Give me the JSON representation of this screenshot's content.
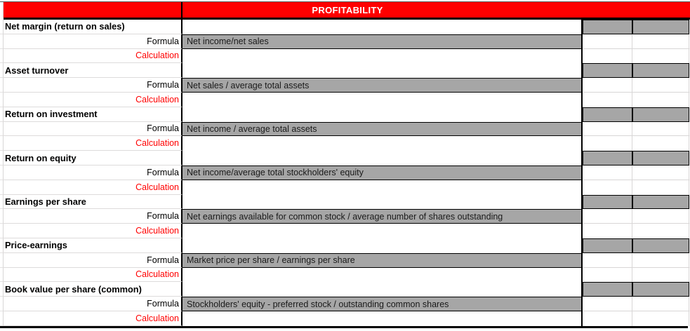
{
  "header": {
    "title": "PROFITABILITY"
  },
  "labels": {
    "formula": "Formula",
    "calculation": "Calculation"
  },
  "sections": [
    {
      "name": "Net margin (return on sales)",
      "formula": "Net income/net sales"
    },
    {
      "name": "Asset turnover",
      "formula": "Net sales / average total assets"
    },
    {
      "name": "Return on investment",
      "formula": "Net income / average total assets"
    },
    {
      "name": "Return on equity",
      "formula": "Net income/average total stockholders' equity"
    },
    {
      "name": "Earnings  per share",
      "formula": "Net earnings available for common stock / average number of shares outstanding"
    },
    {
      "name": "Price-earnings",
      "formula": "Market price per share / earnings per share"
    },
    {
      "name": "Book value per share (common)",
      "formula": "Stockholders' equity - preferred stock / outstanding common shares"
    }
  ],
  "colors": {
    "header_bg": "#ff0000",
    "header_text": "#ffffff",
    "cell_fill_gray": "#a6a6a6",
    "calculation_text": "#ff0000",
    "border_black": "#000000",
    "gridline": "#d8d6d6"
  }
}
